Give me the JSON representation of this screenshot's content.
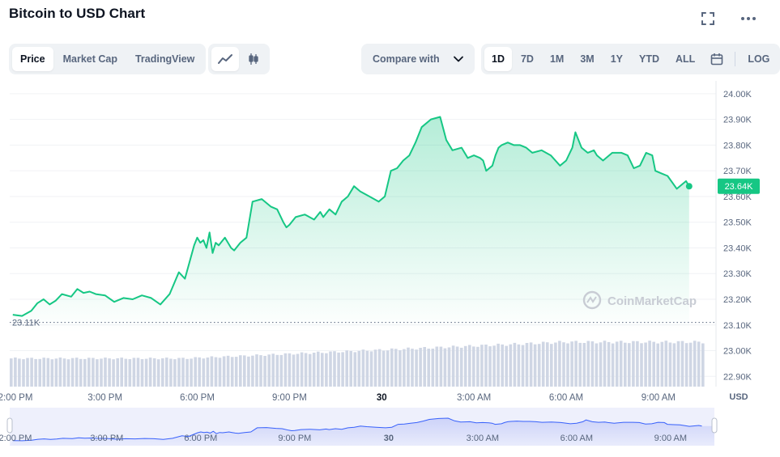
{
  "header": {
    "title": "Bitcoin to USD Chart",
    "fullscreen_icon": "fullscreen-icon",
    "more_icon": "more-horizontal-icon"
  },
  "chart_type_tabs": [
    {
      "label": "Price",
      "active": true
    },
    {
      "label": "Market Cap",
      "active": false
    },
    {
      "label": "TradingView",
      "active": false
    }
  ],
  "view_toggle": [
    {
      "icon": "line-chart-icon",
      "active": true
    },
    {
      "icon": "candlestick-icon",
      "active": false
    }
  ],
  "compare": {
    "label": "Compare with",
    "icon": "chevron-down-icon"
  },
  "ranges": [
    {
      "label": "1D",
      "active": true
    },
    {
      "label": "7D",
      "active": false
    },
    {
      "label": "1M",
      "active": false
    },
    {
      "label": "3M",
      "active": false
    },
    {
      "label": "1Y",
      "active": false
    },
    {
      "label": "YTD",
      "active": false
    },
    {
      "label": "ALL",
      "active": false
    }
  ],
  "calendar_icon": "calendar-icon",
  "log_label": "LOG",
  "watermark": "CoinMarketCap",
  "colors": {
    "line": "#16c784",
    "fill_top": "#16c784",
    "current_badge": "#16c784",
    "volume": "#cfd6e4",
    "navigator_fill": "#e2e6fb",
    "navigator_line": "#3861fb"
  },
  "chart_data": {
    "type": "area",
    "currency_label": "USD",
    "y_tick_labels": [
      "24.00K",
      "23.90K",
      "23.80K",
      "23.70K",
      "23.60K",
      "23.50K",
      "23.40K",
      "23.30K",
      "23.20K",
      "23.10K",
      "23.00K",
      "22.90K"
    ],
    "y_ticks": [
      24000,
      23900,
      23800,
      23700,
      23600,
      23500,
      23400,
      23300,
      23200,
      23100,
      23000,
      22900
    ],
    "ylim": [
      22860,
      24050
    ],
    "x_tick_labels": [
      "12:00 PM",
      "3:00 PM",
      "6:00 PM",
      "9:00 PM",
      "30",
      "3:00 AM",
      "6:00 AM",
      "9:00 AM"
    ],
    "x_ticks_hours": [
      12,
      15,
      18,
      21,
      24,
      27,
      30,
      33
    ],
    "xlim_hours": [
      11.9,
      34.4
    ],
    "open_price_label": "23.11K",
    "open_price": 23110,
    "current_price_label": "23.64K",
    "current_price": 23640,
    "series": [
      {
        "x_hours": [
          12.0,
          12.3,
          12.6,
          12.8,
          13.0,
          13.2,
          13.4,
          13.6,
          13.9,
          14.1,
          14.3,
          14.5,
          14.7,
          15.0,
          15.3,
          15.6,
          15.9,
          16.2,
          16.5,
          16.8,
          17.1,
          17.4,
          17.6,
          17.9,
          18.0,
          18.1,
          18.2,
          18.3,
          18.4,
          18.5,
          18.6,
          18.7,
          18.9,
          19.0,
          19.1,
          19.2,
          19.4,
          19.6,
          19.8,
          20.1,
          20.4,
          20.6,
          20.8,
          20.9,
          21.0,
          21.2,
          21.5,
          21.8,
          22.0,
          22.1,
          22.3,
          22.5,
          22.7,
          22.9,
          23.1,
          23.3,
          23.6,
          23.9,
          24.1,
          24.3,
          24.5,
          24.7,
          24.9,
          25.1,
          25.3,
          25.6,
          25.9,
          26.1,
          26.3,
          26.6,
          26.8,
          27.0,
          27.2,
          27.3,
          27.4,
          27.5,
          27.6,
          27.7,
          27.8,
          27.9,
          28.1,
          28.3,
          28.5,
          28.7,
          28.9,
          29.2,
          29.5,
          29.8,
          30.0,
          30.2,
          30.3,
          30.5,
          30.7,
          30.9,
          31.0,
          31.2,
          31.5,
          31.8,
          32.0,
          32.2,
          32.4,
          32.6,
          32.8,
          32.9,
          33.1,
          33.3,
          33.6,
          33.9,
          34.0
        ],
        "values": [
          23140,
          23135,
          23155,
          23185,
          23200,
          23180,
          23195,
          23220,
          23210,
          23240,
          23225,
          23230,
          23220,
          23215,
          23190,
          23205,
          23200,
          23215,
          23205,
          23180,
          23220,
          23305,
          23280,
          23410,
          23440,
          23420,
          23430,
          23400,
          23460,
          23380,
          23420,
          23410,
          23440,
          23420,
          23400,
          23390,
          23420,
          23440,
          23580,
          23590,
          23560,
          23550,
          23500,
          23480,
          23490,
          23520,
          23530,
          23510,
          23540,
          23520,
          23550,
          23530,
          23580,
          23600,
          23640,
          23620,
          23600,
          23580,
          23600,
          23700,
          23710,
          23740,
          23760,
          23810,
          23870,
          23900,
          23910,
          23820,
          23780,
          23790,
          23750,
          23760,
          23750,
          23740,
          23700,
          23710,
          23720,
          23760,
          23790,
          23800,
          23810,
          23800,
          23800,
          23790,
          23770,
          23780,
          23760,
          23720,
          23740,
          23790,
          23850,
          23790,
          23770,
          23780,
          23760,
          23740,
          23770,
          23770,
          23760,
          23710,
          23720,
          23770,
          23760,
          23700,
          23690,
          23680,
          23630,
          23660,
          23640
        ]
      }
    ],
    "volume_range": [
      0.62,
      0.98
    ]
  }
}
